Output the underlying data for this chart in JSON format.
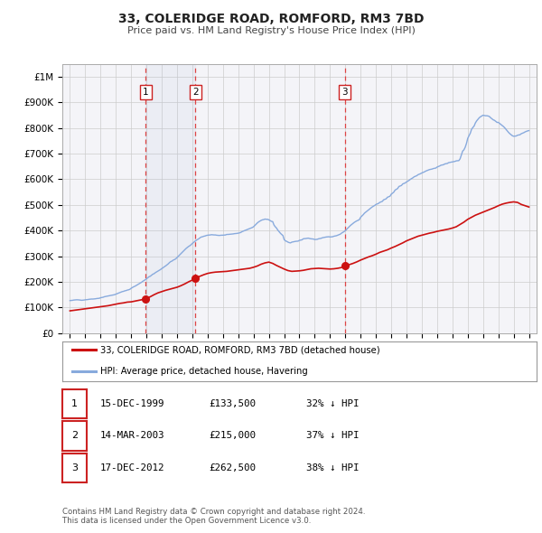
{
  "title": "33, COLERIDGE ROAD, ROMFORD, RM3 7BD",
  "subtitle": "Price paid vs. HM Land Registry's House Price Index (HPI)",
  "bg_color": "#ffffff",
  "plot_bg_color": "#f4f4f8",
  "grid_color": "#cccccc",
  "hpi_color": "#88aadd",
  "price_color": "#cc1111",
  "marker_color": "#cc1111",
  "vline_color": "#dd4444",
  "xlim": [
    1994.5,
    2025.5
  ],
  "ylim": [
    0,
    1050000
  ],
  "yticks": [
    0,
    100000,
    200000,
    300000,
    400000,
    500000,
    600000,
    700000,
    800000,
    900000,
    1000000
  ],
  "ytick_labels": [
    "£0",
    "£100K",
    "£200K",
    "£300K",
    "£400K",
    "£500K",
    "£600K",
    "£700K",
    "£800K",
    "£900K",
    "£1M"
  ],
  "xticks": [
    1995,
    1996,
    1997,
    1998,
    1999,
    2000,
    2001,
    2002,
    2003,
    2004,
    2005,
    2006,
    2007,
    2008,
    2009,
    2010,
    2011,
    2012,
    2013,
    2014,
    2015,
    2016,
    2017,
    2018,
    2019,
    2020,
    2021,
    2022,
    2023,
    2024,
    2025
  ],
  "sale_dates": [
    1999.958,
    2003.208,
    2012.958
  ],
  "sale_prices": [
    133500,
    215000,
    262500
  ],
  "sale_labels": [
    "1",
    "2",
    "3"
  ],
  "legend_price_label": "33, COLERIDGE ROAD, ROMFORD, RM3 7BD (detached house)",
  "legend_hpi_label": "HPI: Average price, detached house, Havering",
  "table_rows": [
    [
      "1",
      "15-DEC-1999",
      "£133,500",
      "32% ↓ HPI"
    ],
    [
      "2",
      "14-MAR-2003",
      "£215,000",
      "37% ↓ HPI"
    ],
    [
      "3",
      "17-DEC-2012",
      "£262,500",
      "38% ↓ HPI"
    ]
  ],
  "footnote": "Contains HM Land Registry data © Crown copyright and database right 2024.\nThis data is licensed under the Open Government Licence v3.0.",
  "hpi_x": [
    1995.0,
    1995.083,
    1995.167,
    1995.25,
    1995.333,
    1995.417,
    1995.5,
    1995.583,
    1995.667,
    1995.75,
    1995.833,
    1995.917,
    1996.0,
    1996.083,
    1996.167,
    1996.25,
    1996.333,
    1996.417,
    1996.5,
    1996.583,
    1996.667,
    1996.75,
    1996.833,
    1996.917,
    1997.0,
    1997.083,
    1997.167,
    1997.25,
    1997.333,
    1997.417,
    1997.5,
    1997.583,
    1997.667,
    1997.75,
    1997.833,
    1997.917,
    1998.0,
    1998.083,
    1998.167,
    1998.25,
    1998.333,
    1998.417,
    1998.5,
    1998.583,
    1998.667,
    1998.75,
    1998.833,
    1998.917,
    1999.0,
    1999.083,
    1999.167,
    1999.25,
    1999.333,
    1999.417,
    1999.5,
    1999.583,
    1999.667,
    1999.75,
    1999.833,
    1999.917,
    2000.0,
    2000.083,
    2000.167,
    2000.25,
    2000.333,
    2000.417,
    2000.5,
    2000.583,
    2000.667,
    2000.75,
    2000.833,
    2000.917,
    2001.0,
    2001.083,
    2001.167,
    2001.25,
    2001.333,
    2001.417,
    2001.5,
    2001.583,
    2001.667,
    2001.75,
    2001.833,
    2001.917,
    2002.0,
    2002.083,
    2002.167,
    2002.25,
    2002.333,
    2002.417,
    2002.5,
    2002.583,
    2002.667,
    2002.75,
    2002.833,
    2002.917,
    2003.0,
    2003.083,
    2003.167,
    2003.25,
    2003.333,
    2003.417,
    2003.5,
    2003.583,
    2003.667,
    2003.75,
    2003.833,
    2003.917,
    2004.0,
    2004.083,
    2004.167,
    2004.25,
    2004.333,
    2004.417,
    2004.5,
    2004.583,
    2004.667,
    2004.75,
    2004.833,
    2004.917,
    2005.0,
    2005.083,
    2005.167,
    2005.25,
    2005.333,
    2005.417,
    2005.5,
    2005.583,
    2005.667,
    2005.75,
    2005.833,
    2005.917,
    2006.0,
    2006.083,
    2006.167,
    2006.25,
    2006.333,
    2006.417,
    2006.5,
    2006.583,
    2006.667,
    2006.75,
    2006.833,
    2006.917,
    2007.0,
    2007.083,
    2007.167,
    2007.25,
    2007.333,
    2007.417,
    2007.5,
    2007.583,
    2007.667,
    2007.75,
    2007.833,
    2007.917,
    2008.0,
    2008.083,
    2008.167,
    2008.25,
    2008.333,
    2008.417,
    2008.5,
    2008.583,
    2008.667,
    2008.75,
    2008.833,
    2008.917,
    2009.0,
    2009.083,
    2009.167,
    2009.25,
    2009.333,
    2009.417,
    2009.5,
    2009.583,
    2009.667,
    2009.75,
    2009.833,
    2009.917,
    2010.0,
    2010.083,
    2010.167,
    2010.25,
    2010.333,
    2010.417,
    2010.5,
    2010.583,
    2010.667,
    2010.75,
    2010.833,
    2010.917,
    2011.0,
    2011.083,
    2011.167,
    2011.25,
    2011.333,
    2011.417,
    2011.5,
    2011.583,
    2011.667,
    2011.75,
    2011.833,
    2011.917,
    2012.0,
    2012.083,
    2012.167,
    2012.25,
    2012.333,
    2012.417,
    2012.5,
    2012.583,
    2012.667,
    2012.75,
    2012.833,
    2012.917,
    2013.0,
    2013.083,
    2013.167,
    2013.25,
    2013.333,
    2013.417,
    2013.5,
    2013.583,
    2013.667,
    2013.75,
    2013.833,
    2013.917,
    2014.0,
    2014.083,
    2014.167,
    2014.25,
    2014.333,
    2014.417,
    2014.5,
    2014.583,
    2014.667,
    2014.75,
    2014.833,
    2014.917,
    2015.0,
    2015.083,
    2015.167,
    2015.25,
    2015.333,
    2015.417,
    2015.5,
    2015.583,
    2015.667,
    2015.75,
    2015.833,
    2015.917,
    2016.0,
    2016.083,
    2016.167,
    2016.25,
    2016.333,
    2016.417,
    2016.5,
    2016.583,
    2016.667,
    2016.75,
    2016.833,
    2016.917,
    2017.0,
    2017.083,
    2017.167,
    2017.25,
    2017.333,
    2017.417,
    2017.5,
    2017.583,
    2017.667,
    2017.75,
    2017.833,
    2017.917,
    2018.0,
    2018.083,
    2018.167,
    2018.25,
    2018.333,
    2018.417,
    2018.5,
    2018.583,
    2018.667,
    2018.75,
    2018.833,
    2018.917,
    2019.0,
    2019.083,
    2019.167,
    2019.25,
    2019.333,
    2019.417,
    2019.5,
    2019.583,
    2019.667,
    2019.75,
    2019.833,
    2019.917,
    2020.0,
    2020.083,
    2020.167,
    2020.25,
    2020.333,
    2020.417,
    2020.5,
    2020.583,
    2020.667,
    2020.75,
    2020.833,
    2020.917,
    2021.0,
    2021.083,
    2021.167,
    2021.25,
    2021.333,
    2021.417,
    2021.5,
    2021.583,
    2021.667,
    2021.75,
    2021.833,
    2021.917,
    2022.0,
    2022.083,
    2022.167,
    2022.25,
    2022.333,
    2022.417,
    2022.5,
    2022.583,
    2022.667,
    2022.75,
    2022.833,
    2022.917,
    2023.0,
    2023.083,
    2023.167,
    2023.25,
    2023.333,
    2023.417,
    2023.5,
    2023.583,
    2023.667,
    2023.75,
    2023.833,
    2023.917,
    2024.0,
    2024.083,
    2024.167,
    2024.25,
    2024.333,
    2024.417,
    2024.5,
    2024.583,
    2024.667,
    2024.75,
    2024.833,
    2024.917,
    2025.0
  ],
  "hpi_y": [
    127000,
    127500,
    128000,
    129000,
    129500,
    130000,
    130000,
    129500,
    129000,
    128000,
    128500,
    129000,
    130000,
    130500,
    131000,
    132000,
    132500,
    133000,
    133000,
    133500,
    134000,
    135000,
    135500,
    136000,
    138000,
    139000,
    140000,
    142000,
    143000,
    144000,
    145000,
    146000,
    147000,
    148000,
    149000,
    150000,
    152000,
    154000,
    156000,
    158000,
    160000,
    162000,
    163000,
    165000,
    166000,
    168000,
    169000,
    171000,
    175000,
    178000,
    181000,
    183000,
    186000,
    189000,
    192000,
    195000,
    198000,
    202000,
    205000,
    208000,
    212000,
    216000,
    220000,
    222000,
    226000,
    230000,
    232000,
    236000,
    239000,
    242000,
    245000,
    248000,
    252000,
    255000,
    259000,
    262000,
    266000,
    270000,
    275000,
    279000,
    281000,
    285000,
    287000,
    290000,
    295000,
    300000,
    305000,
    310000,
    315000,
    320000,
    325000,
    330000,
    334000,
    338000,
    341000,
    345000,
    350000,
    354000,
    358000,
    362000,
    365000,
    368000,
    372000,
    375000,
    376000,
    378000,
    379000,
    381000,
    382000,
    382500,
    383000,
    384000,
    383500,
    383000,
    383000,
    382000,
    381500,
    381000,
    381500,
    382000,
    382000,
    382500,
    383000,
    385000,
    385000,
    385500,
    386000,
    386500,
    387000,
    388000,
    388500,
    389000,
    390000,
    391000,
    393000,
    396000,
    398000,
    400000,
    402000,
    404000,
    406000,
    408000,
    410000,
    412000,
    415000,
    420000,
    425000,
    430000,
    434000,
    437000,
    440000,
    442000,
    443000,
    445000,
    444000,
    444000,
    442000,
    439000,
    436000,
    435000,
    422000,
    415000,
    410000,
    402000,
    396000,
    390000,
    385000,
    381000,
    365000,
    360000,
    358000,
    355000,
    353000,
    352000,
    355000,
    356000,
    357000,
    358000,
    358500,
    359000,
    362000,
    363000,
    364000,
    368000,
    368500,
    369000,
    370000,
    370500,
    369000,
    368000,
    367500,
    367000,
    365000,
    365500,
    366000,
    368000,
    369000,
    370000,
    372000,
    373000,
    374000,
    375000,
    375500,
    376000,
    375000,
    375500,
    376000,
    378000,
    379000,
    380000,
    382000,
    384000,
    386000,
    390000,
    393000,
    396000,
    400000,
    405000,
    410000,
    415000,
    420000,
    424000,
    428000,
    432000,
    435000,
    438000,
    440000,
    443000,
    452000,
    457000,
    462000,
    468000,
    472000,
    476000,
    480000,
    484000,
    488000,
    492000,
    495000,
    498000,
    502000,
    504000,
    506000,
    510000,
    512000,
    514000,
    520000,
    522000,
    524000,
    530000,
    532000,
    534000,
    542000,
    546000,
    550000,
    558000,
    561000,
    564000,
    572000,
    574000,
    576000,
    582000,
    584000,
    586000,
    590000,
    593000,
    596000,
    600000,
    603000,
    606000,
    610000,
    612000,
    614000,
    618000,
    620000,
    622000,
    625000,
    627000,
    629000,
    632000,
    634000,
    636000,
    638000,
    639000,
    640000,
    642000,
    643000,
    644000,
    648000,
    650000,
    652000,
    655000,
    656000,
    657000,
    660000,
    661000,
    662000,
    665000,
    666000,
    667000,
    668000,
    669000,
    670000,
    672000,
    672500,
    673000,
    680000,
    695000,
    710000,
    715000,
    725000,
    740000,
    760000,
    770000,
    780000,
    795000,
    802000,
    808000,
    820000,
    828000,
    834000,
    840000,
    844000,
    847000,
    850000,
    849000,
    848000,
    848000,
    847000,
    845000,
    840000,
    836000,
    832000,
    830000,
    826000,
    822000,
    822000,
    818000,
    814000,
    810000,
    806000,
    801000,
    795000,
    789000,
    783000,
    778000,
    774000,
    770000,
    768000,
    768500,
    769000,
    772000,
    773000,
    774000,
    778000,
    780000,
    782000,
    785000,
    787000,
    789000,
    790000
  ],
  "price_x": [
    1995.0,
    1995.25,
    1995.5,
    1995.75,
    1996.0,
    1996.25,
    1996.5,
    1996.75,
    1997.0,
    1997.25,
    1997.5,
    1997.75,
    1998.0,
    1998.25,
    1998.5,
    1998.75,
    1999.0,
    1999.25,
    1999.5,
    1999.75,
    1999.958,
    2000.25,
    2000.5,
    2000.75,
    2001.0,
    2001.25,
    2001.5,
    2001.75,
    2002.0,
    2002.25,
    2002.5,
    2002.75,
    2003.0,
    2003.208,
    2003.5,
    2003.75,
    2004.0,
    2004.25,
    2004.5,
    2004.75,
    2005.0,
    2005.25,
    2005.5,
    2005.75,
    2006.0,
    2006.25,
    2006.5,
    2006.75,
    2007.0,
    2007.25,
    2007.5,
    2007.75,
    2008.0,
    2008.25,
    2008.5,
    2008.75,
    2009.0,
    2009.25,
    2009.5,
    2009.75,
    2010.0,
    2010.25,
    2010.5,
    2010.75,
    2011.0,
    2011.25,
    2011.5,
    2011.75,
    2012.0,
    2012.25,
    2012.5,
    2012.75,
    2012.958,
    2013.25,
    2013.5,
    2013.75,
    2014.0,
    2014.25,
    2014.5,
    2014.75,
    2015.0,
    2015.25,
    2015.5,
    2015.75,
    2016.0,
    2016.25,
    2016.5,
    2016.75,
    2017.0,
    2017.25,
    2017.5,
    2017.75,
    2018.0,
    2018.25,
    2018.5,
    2018.75,
    2019.0,
    2019.25,
    2019.5,
    2019.75,
    2020.0,
    2020.25,
    2020.5,
    2020.75,
    2021.0,
    2021.25,
    2021.5,
    2021.75,
    2022.0,
    2022.25,
    2022.5,
    2022.75,
    2023.0,
    2023.25,
    2023.5,
    2023.75,
    2024.0,
    2024.25,
    2024.5,
    2024.75,
    2025.0
  ],
  "price_y": [
    87000,
    89000,
    91000,
    93000,
    95000,
    97000,
    99000,
    101000,
    103000,
    105000,
    107000,
    110000,
    113000,
    116000,
    118000,
    121000,
    122000,
    125000,
    128000,
    131000,
    133500,
    142000,
    150000,
    157000,
    162000,
    167000,
    171000,
    175000,
    179000,
    185000,
    192000,
    200000,
    207000,
    215000,
    222000,
    228000,
    233000,
    236000,
    238000,
    239000,
    240000,
    241000,
    243000,
    245000,
    247000,
    249000,
    251000,
    253000,
    257000,
    262000,
    269000,
    274000,
    277000,
    272000,
    264000,
    257000,
    250000,
    244000,
    241000,
    242000,
    243000,
    245000,
    248000,
    251000,
    252000,
    253000,
    252000,
    251000,
    250000,
    251000,
    253000,
    256000,
    262500,
    267000,
    272000,
    278000,
    285000,
    291000,
    297000,
    302000,
    308000,
    315000,
    320000,
    325000,
    332000,
    338000,
    345000,
    352000,
    360000,
    366000,
    372000,
    378000,
    382000,
    386000,
    390000,
    393000,
    397000,
    400000,
    403000,
    406000,
    410000,
    415000,
    424000,
    433000,
    444000,
    452000,
    460000,
    466000,
    472000,
    478000,
    484000,
    490000,
    497000,
    503000,
    507000,
    510000,
    512000,
    510000,
    502000,
    497000,
    492000
  ]
}
